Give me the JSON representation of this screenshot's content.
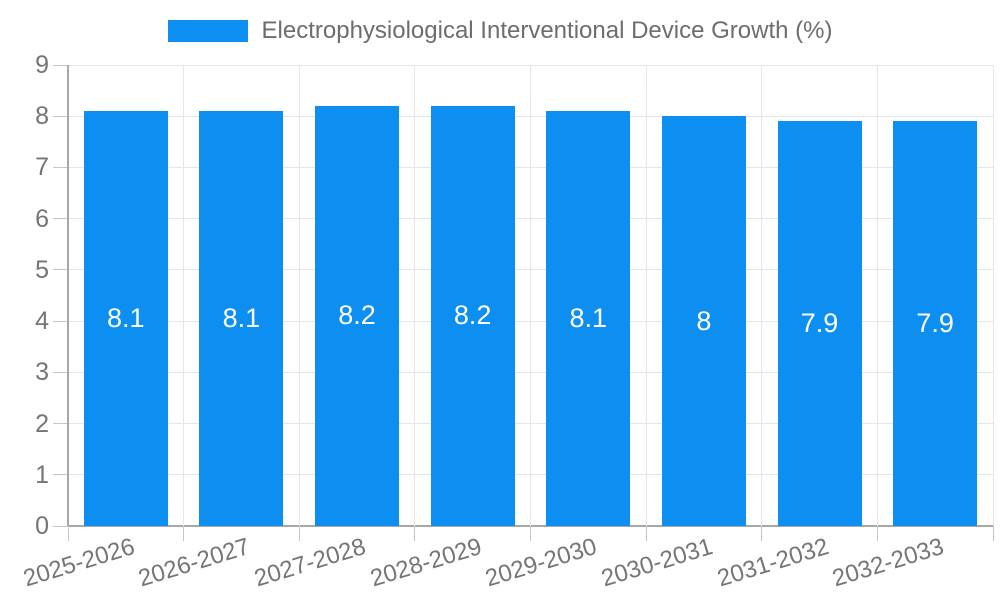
{
  "chart_data": {
    "type": "bar",
    "title": "Electrophysiological Interventional Device Growth (%)",
    "series_name": "Electrophysiological Interventional Device Growth (%)",
    "categories": [
      "2025-2026",
      "2026-2027",
      "2027-2028",
      "2028-2029",
      "2029-2030",
      "2030-2031",
      "2031-2032",
      "2032-2033"
    ],
    "values": [
      8.1,
      8.1,
      8.2,
      8.2,
      8.1,
      8,
      7.9,
      7.9
    ],
    "xlabel": "",
    "ylabel": "",
    "ylim": [
      0,
      9
    ],
    "y_ticks": [
      0,
      1,
      2,
      3,
      4,
      5,
      6,
      7,
      8,
      9
    ],
    "grid": true,
    "legend_position": "top",
    "bar_color": "#0d8ff2",
    "bar_label_color": "#ffffff",
    "grid_color": "#e6e6e6",
    "axis_line_color": "#a8a8a8",
    "tick_mark_color": "#c6c6c6",
    "tick_label_color": "#757575",
    "title_color": "#6d6d6d"
  }
}
